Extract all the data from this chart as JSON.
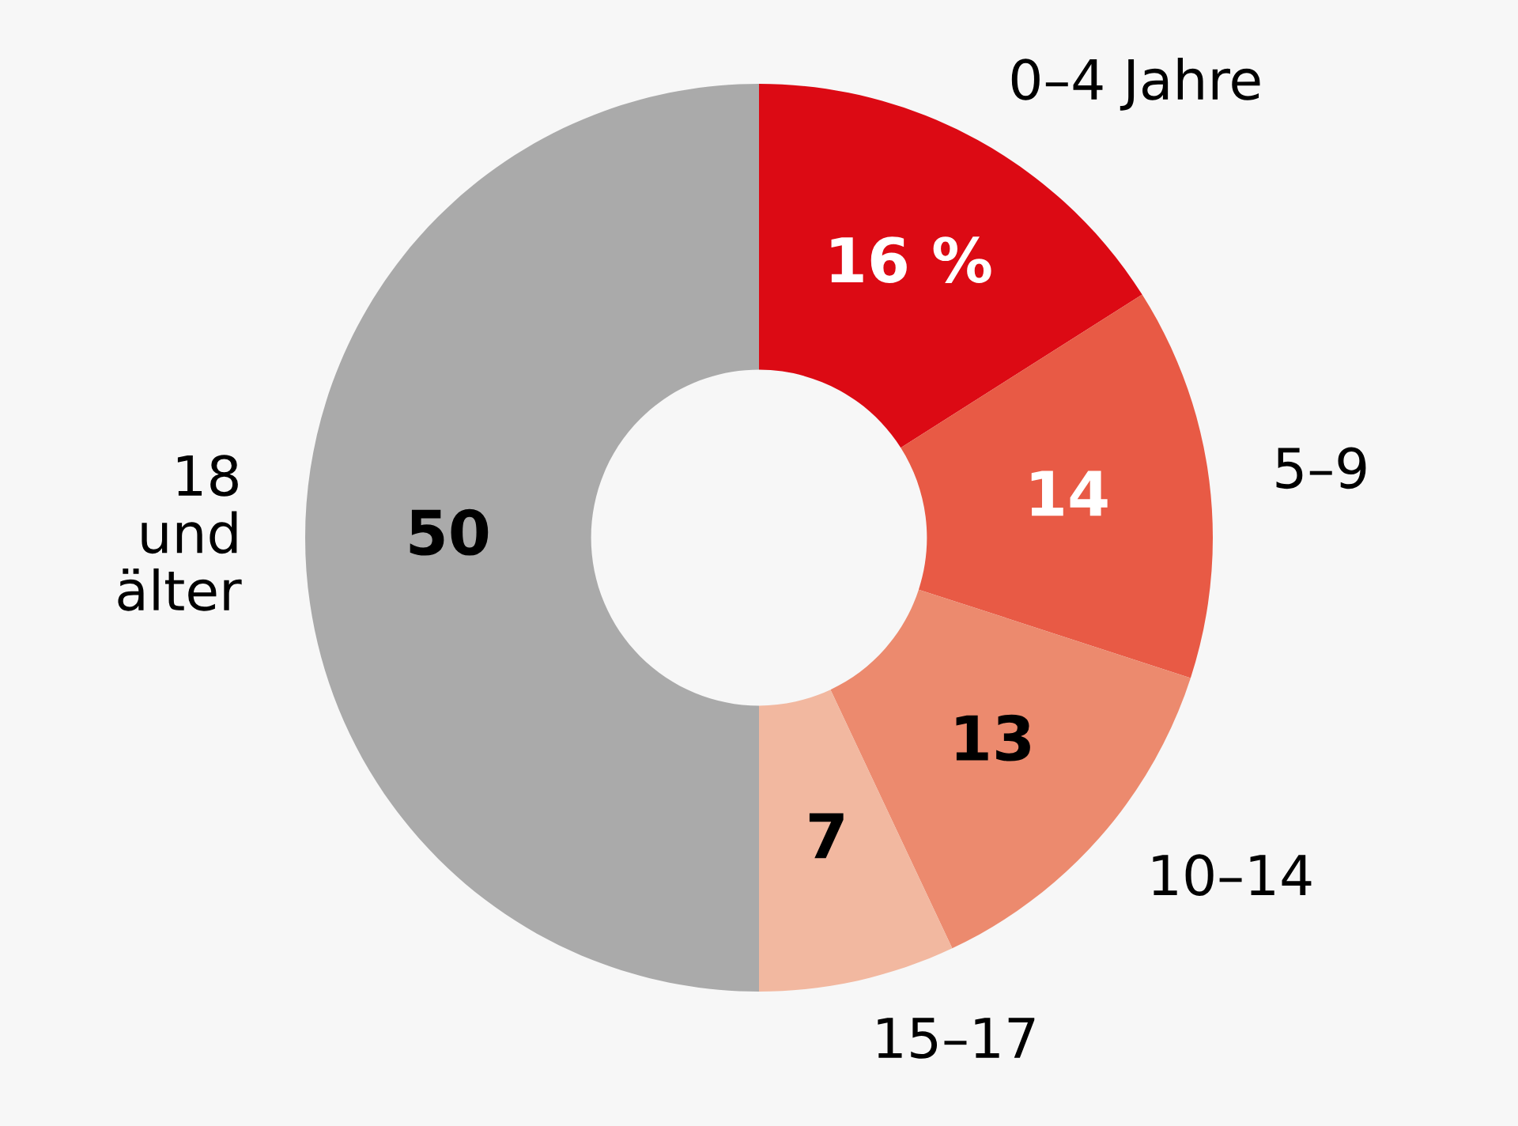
{
  "chart_data": {
    "type": "donut",
    "categories": [
      "0–4 Jahre",
      "5–9",
      "10–14",
      "15–17",
      "18\nund\nälter"
    ],
    "values": [
      16,
      14,
      13,
      7,
      50
    ],
    "value_labels": [
      "16 %",
      "14",
      "13",
      "7",
      "50"
    ],
    "colors": [
      "#dc0a14",
      "#e85a45",
      "#ec8a6e",
      "#f2b8a0",
      "#aaaaaa"
    ],
    "legend": false
  }
}
